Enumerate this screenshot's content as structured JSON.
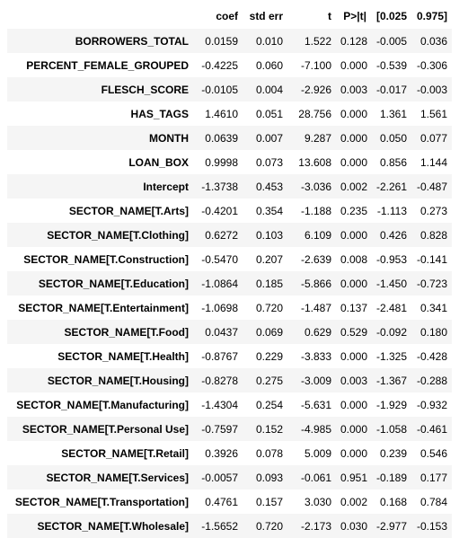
{
  "table": {
    "headers": [
      "",
      "coef",
      "std err",
      "t",
      "P>|t|",
      "[0.025",
      "0.975]"
    ],
    "rows": [
      {
        "name": "BORROWERS_TOTAL",
        "coef": "0.0159",
        "std_err": "0.010",
        "t": "1.522",
        "p": "0.128",
        "ci_low": "-0.005",
        "ci_high": "0.036"
      },
      {
        "name": "PERCENT_FEMALE_GROUPED",
        "coef": "-0.4225",
        "std_err": "0.060",
        "t": "-7.100",
        "p": "0.000",
        "ci_low": "-0.539",
        "ci_high": "-0.306"
      },
      {
        "name": "FLESCH_SCORE",
        "coef": "-0.0105",
        "std_err": "0.004",
        "t": "-2.926",
        "p": "0.003",
        "ci_low": "-0.017",
        "ci_high": "-0.003"
      },
      {
        "name": "HAS_TAGS",
        "coef": "1.4610",
        "std_err": "0.051",
        "t": "28.756",
        "p": "0.000",
        "ci_low": "1.361",
        "ci_high": "1.561"
      },
      {
        "name": "MONTH",
        "coef": "0.0639",
        "std_err": "0.007",
        "t": "9.287",
        "p": "0.000",
        "ci_low": "0.050",
        "ci_high": "0.077"
      },
      {
        "name": "LOAN_BOX",
        "coef": "0.9998",
        "std_err": "0.073",
        "t": "13.608",
        "p": "0.000",
        "ci_low": "0.856",
        "ci_high": "1.144"
      },
      {
        "name": "Intercept",
        "coef": "-1.3738",
        "std_err": "0.453",
        "t": "-3.036",
        "p": "0.002",
        "ci_low": "-2.261",
        "ci_high": "-0.487"
      },
      {
        "name": "SECTOR_NAME[T.Arts]",
        "coef": "-0.4201",
        "std_err": "0.354",
        "t": "-1.188",
        "p": "0.235",
        "ci_low": "-1.113",
        "ci_high": "0.273"
      },
      {
        "name": "SECTOR_NAME[T.Clothing]",
        "coef": "0.6272",
        "std_err": "0.103",
        "t": "6.109",
        "p": "0.000",
        "ci_low": "0.426",
        "ci_high": "0.828"
      },
      {
        "name": "SECTOR_NAME[T.Construction]",
        "coef": "-0.5470",
        "std_err": "0.207",
        "t": "-2.639",
        "p": "0.008",
        "ci_low": "-0.953",
        "ci_high": "-0.141"
      },
      {
        "name": "SECTOR_NAME[T.Education]",
        "coef": "-1.0864",
        "std_err": "0.185",
        "t": "-5.866",
        "p": "0.000",
        "ci_low": "-1.450",
        "ci_high": "-0.723"
      },
      {
        "name": "SECTOR_NAME[T.Entertainment]",
        "coef": "-1.0698",
        "std_err": "0.720",
        "t": "-1.487",
        "p": "0.137",
        "ci_low": "-2.481",
        "ci_high": "0.341"
      },
      {
        "name": "SECTOR_NAME[T.Food]",
        "coef": "0.0437",
        "std_err": "0.069",
        "t": "0.629",
        "p": "0.529",
        "ci_low": "-0.092",
        "ci_high": "0.180"
      },
      {
        "name": "SECTOR_NAME[T.Health]",
        "coef": "-0.8767",
        "std_err": "0.229",
        "t": "-3.833",
        "p": "0.000",
        "ci_low": "-1.325",
        "ci_high": "-0.428"
      },
      {
        "name": "SECTOR_NAME[T.Housing]",
        "coef": "-0.8278",
        "std_err": "0.275",
        "t": "-3.009",
        "p": "0.003",
        "ci_low": "-1.367",
        "ci_high": "-0.288"
      },
      {
        "name": "SECTOR_NAME[T.Manufacturing]",
        "coef": "-1.4304",
        "std_err": "0.254",
        "t": "-5.631",
        "p": "0.000",
        "ci_low": "-1.929",
        "ci_high": "-0.932"
      },
      {
        "name": "SECTOR_NAME[T.Personal Use]",
        "coef": "-0.7597",
        "std_err": "0.152",
        "t": "-4.985",
        "p": "0.000",
        "ci_low": "-1.058",
        "ci_high": "-0.461"
      },
      {
        "name": "SECTOR_NAME[T.Retail]",
        "coef": "0.3926",
        "std_err": "0.078",
        "t": "5.009",
        "p": "0.000",
        "ci_low": "0.239",
        "ci_high": "0.546"
      },
      {
        "name": "SECTOR_NAME[T.Services]",
        "coef": "-0.0057",
        "std_err": "0.093",
        "t": "-0.061",
        "p": "0.951",
        "ci_low": "-0.189",
        "ci_high": "0.177"
      },
      {
        "name": "SECTOR_NAME[T.Transportation]",
        "coef": "0.4761",
        "std_err": "0.157",
        "t": "3.030",
        "p": "0.002",
        "ci_low": "0.168",
        "ci_high": "0.784"
      },
      {
        "name": "SECTOR_NAME[T.Wholesale]",
        "coef": "-1.5652",
        "std_err": "0.720",
        "t": "-2.173",
        "p": "0.030",
        "ci_low": "-2.977",
        "ci_high": "-0.153"
      }
    ]
  }
}
